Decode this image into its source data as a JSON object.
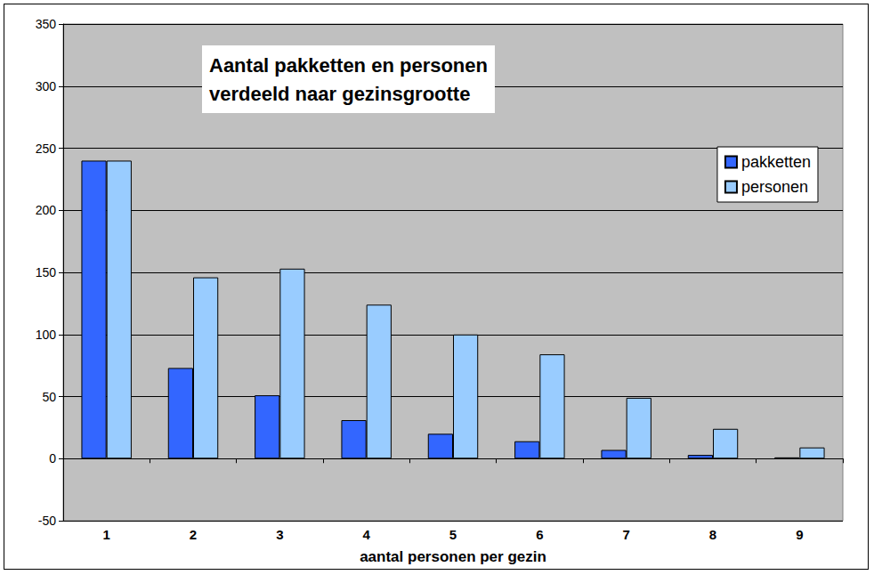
{
  "chart_data": {
    "type": "bar",
    "title": "Aantal pakketten en personen\nverdeeld naar gezinsgrootte",
    "xlabel": "aantal personen per gezin",
    "categories": [
      "1",
      "2",
      "3",
      "4",
      "5",
      "6",
      "7",
      "8",
      "9"
    ],
    "series": [
      {
        "name": "pakketten",
        "color": "#3366ff",
        "values": [
          240,
          73,
          51,
          31,
          20,
          14,
          7,
          3,
          1
        ]
      },
      {
        "name": "personen",
        "color": "#99ccff",
        "values": [
          240,
          146,
          153,
          124,
          100,
          84,
          49,
          24,
          9
        ]
      }
    ],
    "ylim": [
      -50,
      350
    ],
    "yticks": [
      -50,
      0,
      50,
      100,
      150,
      200,
      250,
      300,
      350
    ],
    "grid": true,
    "legend": "right"
  }
}
